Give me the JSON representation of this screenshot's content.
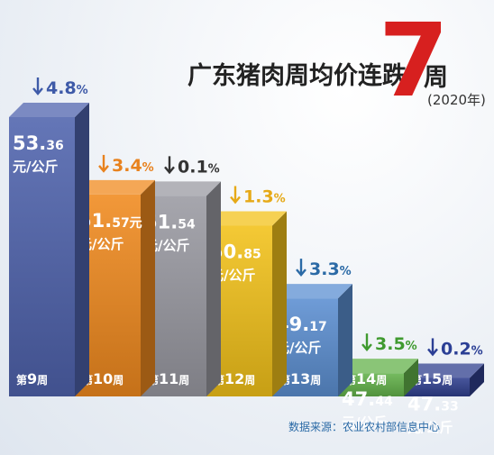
{
  "title": {
    "main": "广东猪肉周均价连跌",
    "number": "7",
    "suffix": "周",
    "year": "(2020年)"
  },
  "source": "数据来源：农业农村部信息中心",
  "unit_label": "元/公斤",
  "chart_data": {
    "type": "bar",
    "title": "广东猪肉周均价连跌7周",
    "subtitle": "(2020年)",
    "unit": "元/公斤",
    "categories": [
      "第9周",
      "第10周",
      "第11周",
      "第12周",
      "第13周",
      "第14周",
      "第15周"
    ],
    "values": [
      53.36,
      51.57,
      51.54,
      50.85,
      49.17,
      47.44,
      47.33
    ],
    "value_labels": [
      [
        "53.",
        "36"
      ],
      [
        "51.",
        "57元"
      ],
      [
        "51.",
        "54"
      ],
      [
        "50.",
        "85"
      ],
      [
        "49.",
        "17"
      ],
      [
        "47.",
        "44"
      ],
      [
        "47.",
        "33"
      ]
    ],
    "week_labels": [
      [
        "第",
        "9",
        "周"
      ],
      [
        "第",
        "10",
        "周"
      ],
      [
        "第",
        "11",
        "周"
      ],
      [
        "第",
        "12",
        "周"
      ],
      [
        "第",
        "13",
        "周"
      ],
      [
        "第",
        "14",
        "周"
      ],
      [
        "第",
        "15",
        "周"
      ]
    ],
    "changes": [
      "4.8%",
      "3.4%",
      "0.1%",
      "1.3%",
      "3.3%",
      "3.5%",
      "0.2%"
    ],
    "change_direction": "down",
    "colors": {
      "bars": [
        "#4f63ad",
        "#f08a1e",
        "#9a9aa2",
        "#f3c21a",
        "#5b8fd1",
        "#63b24a",
        "#2f3f8e"
      ],
      "changes": [
        "#3e5aa8",
        "#e8821e",
        "#333333",
        "#e6a917",
        "#2b6aa6",
        "#3f9a2f",
        "#2b3f95"
      ],
      "title_number": "#d7201f"
    }
  }
}
